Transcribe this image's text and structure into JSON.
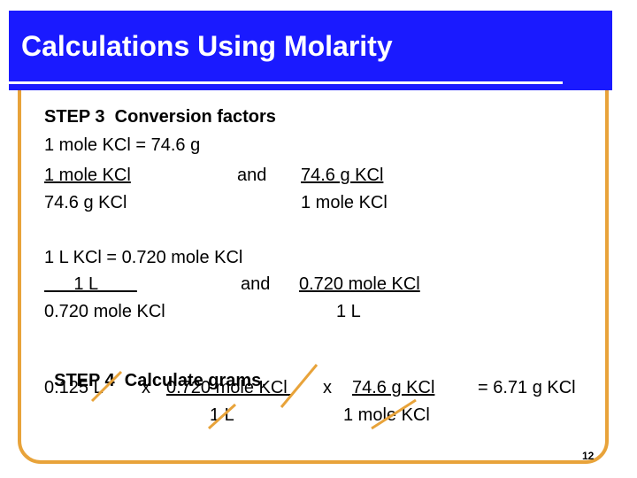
{
  "header": {
    "title": "Calculations Using Molarity"
  },
  "step3": {
    "heading": "STEP 3  Conversion factors",
    "equality1": "1 mole KCl = 74.6 g",
    "factor1_top": "1 mole KCl",
    "and1": "and",
    "factor2_top": "74.6 g KCl",
    "factor1_bottom": "74.6 g KCl",
    "factor2_bottom": "1 mole KCl",
    "equality2": "1 L KCl = 0.720 mole KCl",
    "factor3_top": "      1 L        ",
    "and2": "and",
    "factor4_top": "0.720 mole KCl",
    "factor3_bottom": "0.720 mole KCl",
    "factor4_bottom": "1 L"
  },
  "step4": {
    "heading": "STEP 4  Calculate grams",
    "heading_period": ".",
    "given": "0.125 L",
    "times1": "x",
    "conv1_top": "0.720 mole KCl ",
    "times2": "x",
    "conv2_top": "74.6 g KCl",
    "result": "= 6.71 g KCl",
    "conv1_bottom": "1 L",
    "conv2_bottom": "1 mole KCl"
  },
  "footer": {
    "page_number": "12"
  },
  "colors": {
    "title_bg": "#1a1aff",
    "frame": "#e8a33a",
    "cancel_line": "#e8a33a"
  }
}
